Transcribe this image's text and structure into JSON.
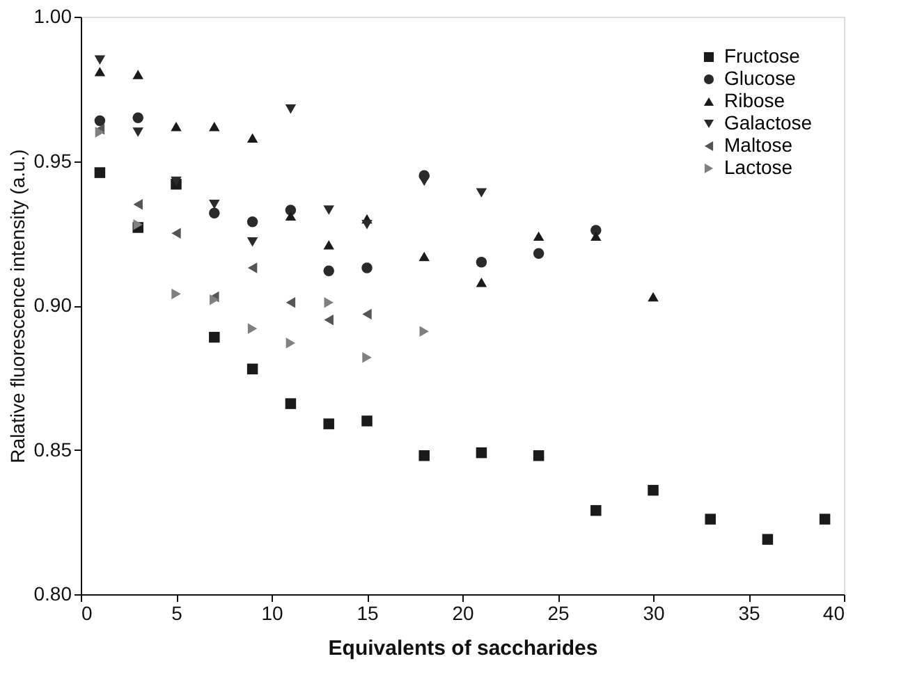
{
  "chart_data": {
    "type": "scatter",
    "xlabel": "Equivalents of saccharides",
    "ylabel": "Ralative fluorescence intensity (a.u.)",
    "xlim": [
      0,
      40
    ],
    "xticks": [
      0,
      5,
      10,
      15,
      20,
      25,
      30,
      35,
      40
    ],
    "ylim": [
      0.8,
      1.0
    ],
    "yticks": [
      {
        "value": 0.8,
        "label": "0.80"
      },
      {
        "value": 0.85,
        "label": "0.85"
      },
      {
        "value": 0.9,
        "label": "0.90"
      },
      {
        "value": 0.95,
        "label": "0.95"
      },
      {
        "value": 1.0,
        "label": "1.00"
      }
    ],
    "grid": false,
    "legend": "top right",
    "series": [
      {
        "name": "Fructose",
        "color": "#1a1a1a",
        "marker": "square",
        "x": [
          1,
          3,
          5,
          7,
          9,
          11,
          13,
          15,
          18,
          21,
          24,
          27,
          30,
          33,
          36,
          39
        ],
        "values": [
          0.946,
          0.927,
          0.942,
          0.889,
          0.878,
          0.866,
          0.859,
          0.86,
          0.848,
          0.849,
          0.848,
          0.829,
          0.836,
          0.826,
          0.819,
          0.826
        ]
      },
      {
        "name": "Glucose",
        "color": "#2a2a2a",
        "marker": "circle",
        "x": [
          1,
          3,
          7,
          9,
          11,
          13,
          15,
          18,
          21,
          24,
          27
        ],
        "values": [
          0.964,
          0.965,
          0.932,
          0.929,
          0.933,
          0.912,
          0.913,
          0.945,
          0.915,
          0.918,
          0.926
        ]
      },
      {
        "name": "Ribose",
        "color": "#1a1a1a",
        "marker": "triangle-up",
        "x": [
          1,
          3,
          5,
          7,
          9,
          11,
          13,
          15,
          18,
          21,
          24,
          27,
          30
        ],
        "values": [
          0.981,
          0.98,
          0.962,
          0.962,
          0.958,
          0.931,
          0.921,
          0.93,
          0.917,
          0.908,
          0.924,
          0.924,
          0.903
        ]
      },
      {
        "name": "Galactose",
        "color": "#2a2a2a",
        "marker": "triangle-down",
        "x": [
          1,
          3,
          5,
          7,
          9,
          11,
          13,
          15,
          18,
          21
        ],
        "values": [
          0.985,
          0.96,
          0.943,
          0.935,
          0.922,
          0.968,
          0.933,
          0.928,
          0.943,
          0.939
        ]
      },
      {
        "name": "Maltose",
        "color": "#555555",
        "marker": "triangle-left",
        "x": [
          1,
          3,
          5,
          7,
          9,
          11,
          13,
          15
        ],
        "values": [
          0.961,
          0.935,
          0.925,
          0.903,
          0.913,
          0.901,
          0.895,
          0.897
        ]
      },
      {
        "name": "Lactose",
        "color": "#808080",
        "marker": "triangle-right",
        "x": [
          1,
          3,
          5,
          7,
          9,
          11,
          13,
          15,
          18
        ],
        "values": [
          0.96,
          0.928,
          0.904,
          0.902,
          0.892,
          0.887,
          0.901,
          0.882,
          0.891
        ]
      }
    ]
  }
}
